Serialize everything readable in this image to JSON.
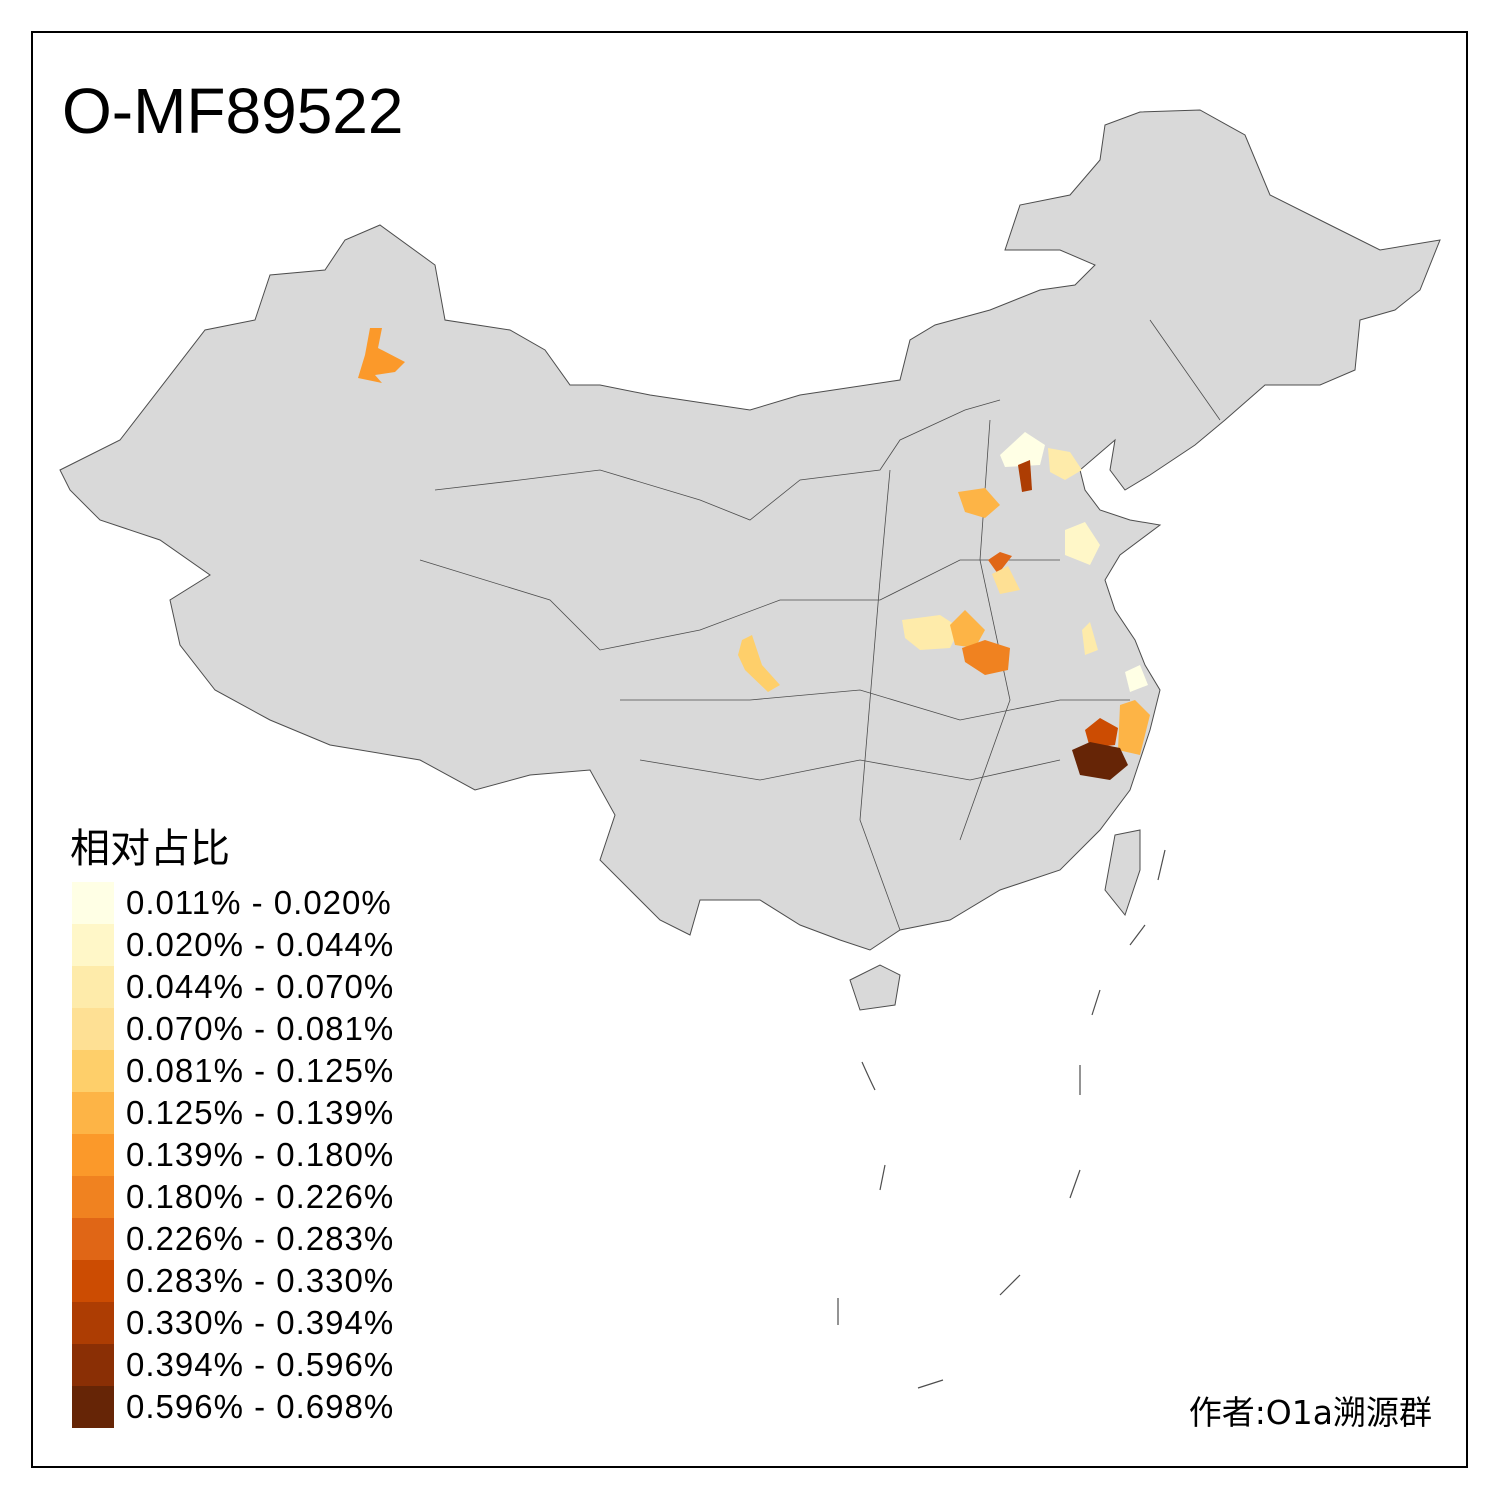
{
  "title": "O-MF89522",
  "legend": {
    "title": "相对占比",
    "items": [
      {
        "label": "0.011% - 0.020%",
        "color": "#FFFFE5"
      },
      {
        "label": "0.020% - 0.044%",
        "color": "#FFF7C8"
      },
      {
        "label": "0.044% - 0.070%",
        "color": "#FEEBAA"
      },
      {
        "label": "0.070% - 0.081%",
        "color": "#FEE094"
      },
      {
        "label": "0.081% - 0.125%",
        "color": "#FECF6A"
      },
      {
        "label": "0.125% - 0.139%",
        "color": "#FDB446"
      },
      {
        "label": "0.139% - 0.180%",
        "color": "#FB992A"
      },
      {
        "label": "0.180% - 0.226%",
        "color": "#F08220"
      },
      {
        "label": "0.226% - 0.283%",
        "color": "#E06616"
      },
      {
        "label": "0.283% - 0.330%",
        "color": "#CC4C02"
      },
      {
        "label": "0.330% - 0.394%",
        "color": "#AD3D03"
      },
      {
        "label": "0.394% - 0.596%",
        "color": "#8A2F05"
      },
      {
        "label": "0.596% - 0.698%",
        "color": "#662506"
      }
    ]
  },
  "credit": "作者:O1a溯源群",
  "map_colors": {
    "land": "#D9D9D9",
    "border": "#4D4D4D"
  }
}
